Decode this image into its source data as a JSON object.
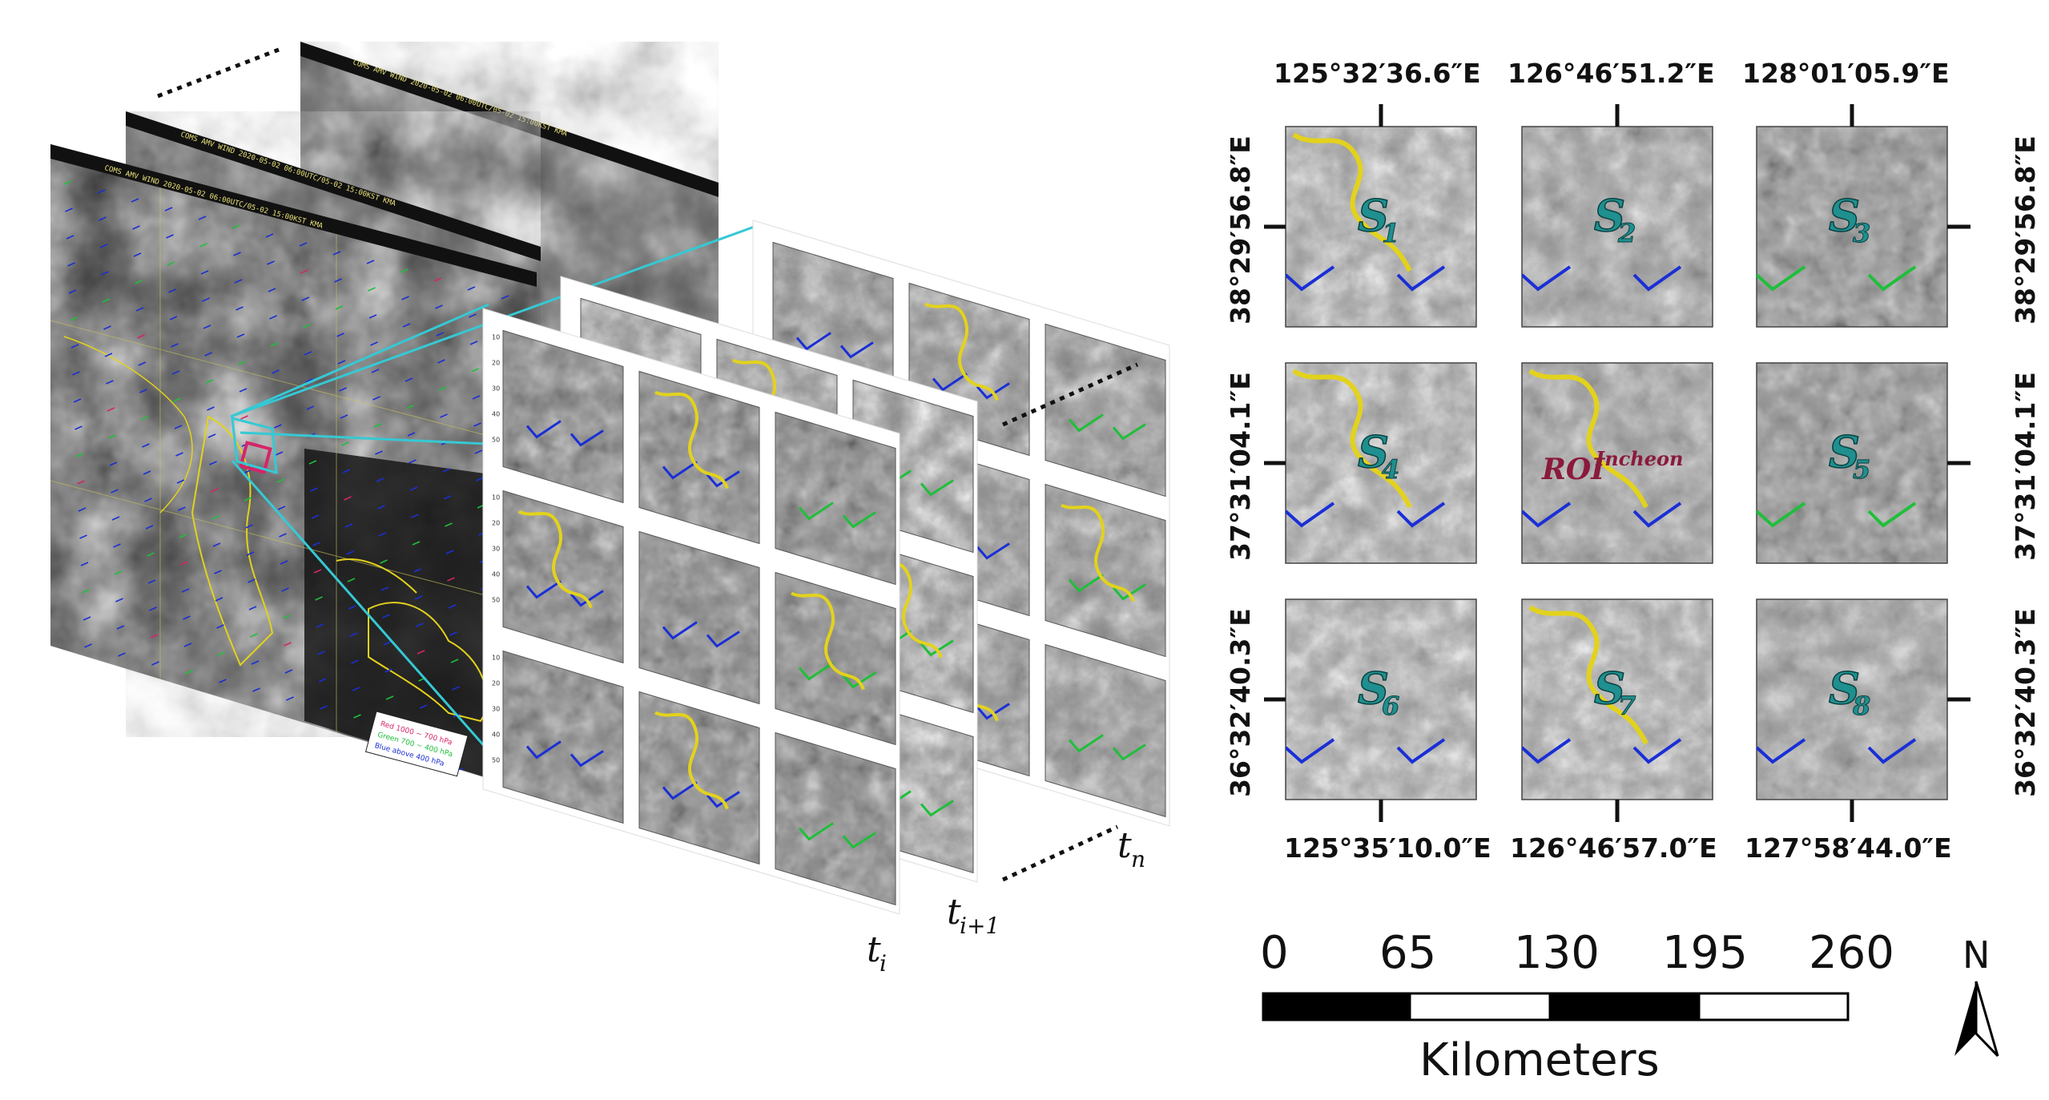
{
  "figure": {
    "satellite_headers": [
      "COMS AMV WIND 2020-05-02 06:00UTC/05-02 15:00KST KMA",
      "COMS AMV WIND 2020-05-02 06:00UTC/05-02 15:00KST KMA",
      "COMS AMV WIND 2020-05-02 06:00UTC/05-02 15:00KST KMA"
    ],
    "legend": {
      "red": "Red 1000 ~ 700 hPa",
      "green": "Green 700 ~ 400 hPa",
      "blue": "Blue above 400 hPa"
    },
    "colors": {
      "cyan_lines": "#35c9d4",
      "coastline": "#e3d21c",
      "wind_blue": "#1a2fd6",
      "wind_green": "#1fbf3a",
      "roi_red": "#d6246a"
    },
    "tick_values": [
      "10",
      "20",
      "30",
      "40",
      "50"
    ],
    "time_labels": {
      "ti": {
        "base": "t",
        "sub": "i"
      },
      "ti1": {
        "base": "t",
        "sub": "i+1"
      },
      "tn": {
        "base": "t",
        "sub": "n"
      }
    }
  },
  "grid": {
    "top_coords": [
      "125°32′36.6″E",
      "126°46′51.2″E",
      "128°01′05.9″E"
    ],
    "bottom_coords": [
      "125°35′10.0″E",
      "126°46′57.0″E",
      "127°58′44.0″E"
    ],
    "left_coords": [
      "38°29′56.8″E",
      "37°31′04.1″E",
      "36°32′40.3″E"
    ],
    "right_coords": [
      "38°29′56.8″E",
      "37°31′04.1″E",
      "36°32′40.3″E"
    ],
    "cells": [
      {
        "base": "S",
        "sub": "1"
      },
      {
        "base": "S",
        "sub": "2"
      },
      {
        "base": "S",
        "sub": "3"
      },
      {
        "base": "S",
        "sub": "4"
      },
      {
        "roi": "ROI",
        "roi_sup": "Incheon"
      },
      {
        "base": "S",
        "sub": "5"
      },
      {
        "base": "S",
        "sub": "6"
      },
      {
        "base": "S",
        "sub": "7"
      },
      {
        "base": "S",
        "sub": "8"
      }
    ]
  },
  "scalebar": {
    "ticks": [
      "0",
      "65",
      "130",
      "195",
      "260"
    ],
    "unit": "Kilometers",
    "north": "N"
  }
}
